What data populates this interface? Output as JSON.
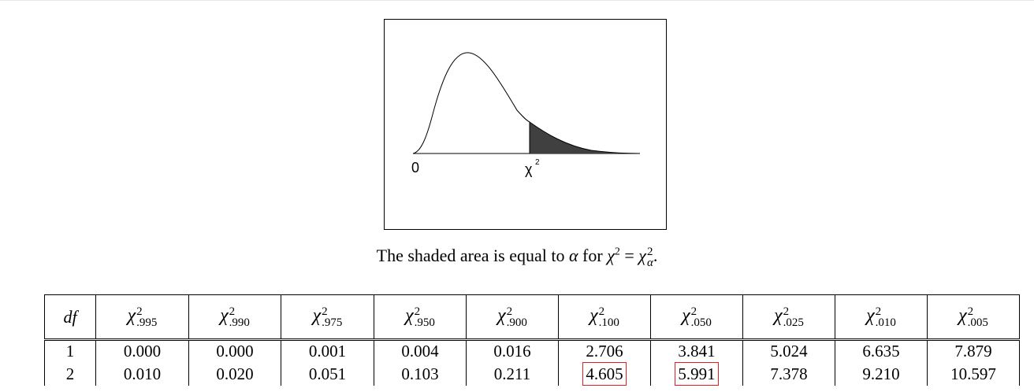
{
  "figure": {
    "zero_label": "0",
    "chi_label": "χ",
    "chi_label_exp": "2",
    "shade_color": "#404040"
  },
  "caption": {
    "prefix": "The shaded area is equal to ",
    "alpha": "α",
    "middle": " for ",
    "chi": "χ",
    "exp": "2",
    "equals": " = ",
    "sub": "α",
    "end": "."
  },
  "table": {
    "df_header": "df",
    "chi_symbol": "χ",
    "exponent": "2",
    "columns": [
      ".995",
      ".990",
      ".975",
      ".950",
      ".900",
      ".100",
      ".050",
      ".025",
      ".010",
      ".005"
    ],
    "rows": [
      {
        "df": "1",
        "values": [
          "0.000",
          "0.000",
          "0.001",
          "0.004",
          "0.016",
          "2.706",
          "3.841",
          "5.024",
          "6.635",
          "7.879"
        ]
      },
      {
        "df": "2",
        "values": [
          "0.010",
          "0.020",
          "0.051",
          "0.103",
          "0.211",
          "4.605",
          "5.991",
          "7.378",
          "9.210",
          "10.597"
        ]
      }
    ],
    "highlight_color": "#e02020"
  }
}
